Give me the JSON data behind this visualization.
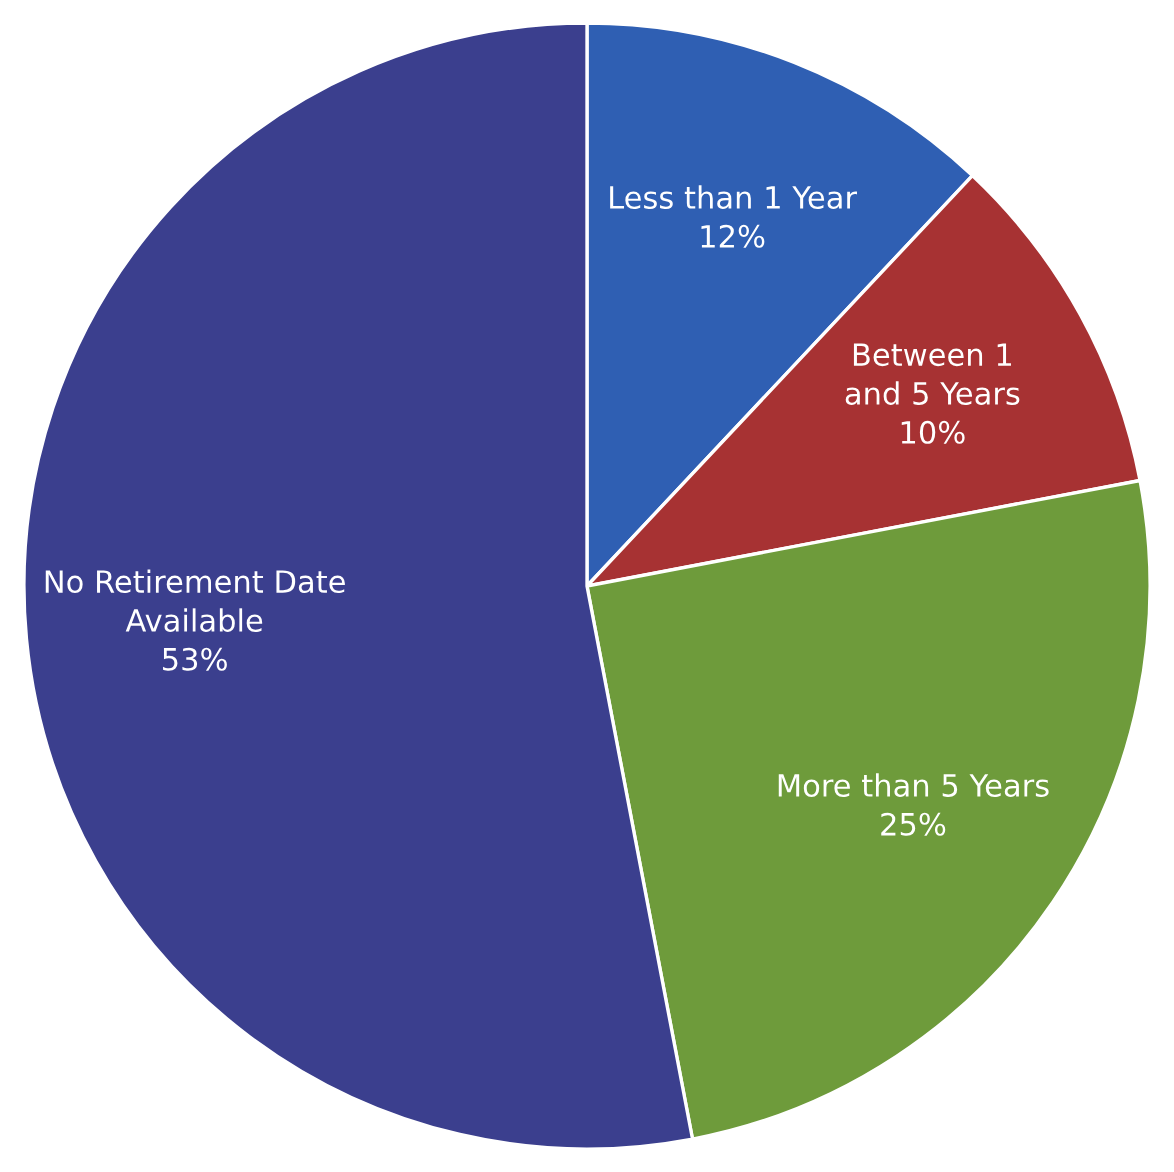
{
  "chart_data": {
    "type": "pie",
    "categories": [
      "Less than 1 Year",
      "Between 1\nand 5 Years",
      "More than 5 Years",
      "No Retirement Date\nAvailable"
    ],
    "values": [
      12,
      10,
      25,
      53
    ],
    "value_labels": [
      "12%",
      "10%",
      "25%",
      "53%"
    ],
    "colors": [
      "#2f5fb3",
      "#a73233",
      "#6e9b3b",
      "#3b3f8e"
    ]
  }
}
